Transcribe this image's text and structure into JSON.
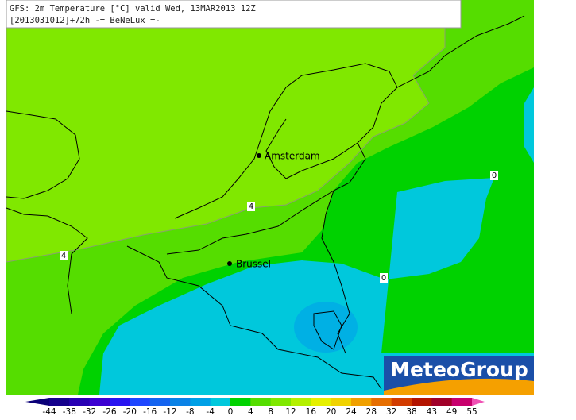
{
  "header": {
    "title": "GFS: 2m Temperature [°C] valid Wed, 13MAR2013 12Z",
    "subtitle": "[2013031012]+72h -= BeNeLux =-"
  },
  "cities": [
    "Amsterdam",
    "Brussel"
  ],
  "contour_labels": [
    "4",
    "4",
    "0",
    "0"
  ],
  "logo": "MeteoGroup",
  "colorbar": {
    "labels": [
      -44,
      -38,
      -32,
      -26,
      -20,
      -16,
      -12,
      -8,
      -4,
      0,
      4,
      8,
      12,
      16,
      20,
      24,
      28,
      32,
      38,
      43,
      49,
      55
    ],
    "colors": [
      "#0a0078",
      "#14008c",
      "#2800b4",
      "#3c00d2",
      "#2814f0",
      "#1e46ff",
      "#1464f0",
      "#0a82e6",
      "#00a0e6",
      "#00c8dc",
      "#00d200",
      "#55dd00",
      "#80e800",
      "#b4f000",
      "#e6f000",
      "#f0d200",
      "#f0a000",
      "#e66e00",
      "#d23c00",
      "#b41400",
      "#a00028",
      "#c8006e",
      "#f050b4"
    ]
  }
}
